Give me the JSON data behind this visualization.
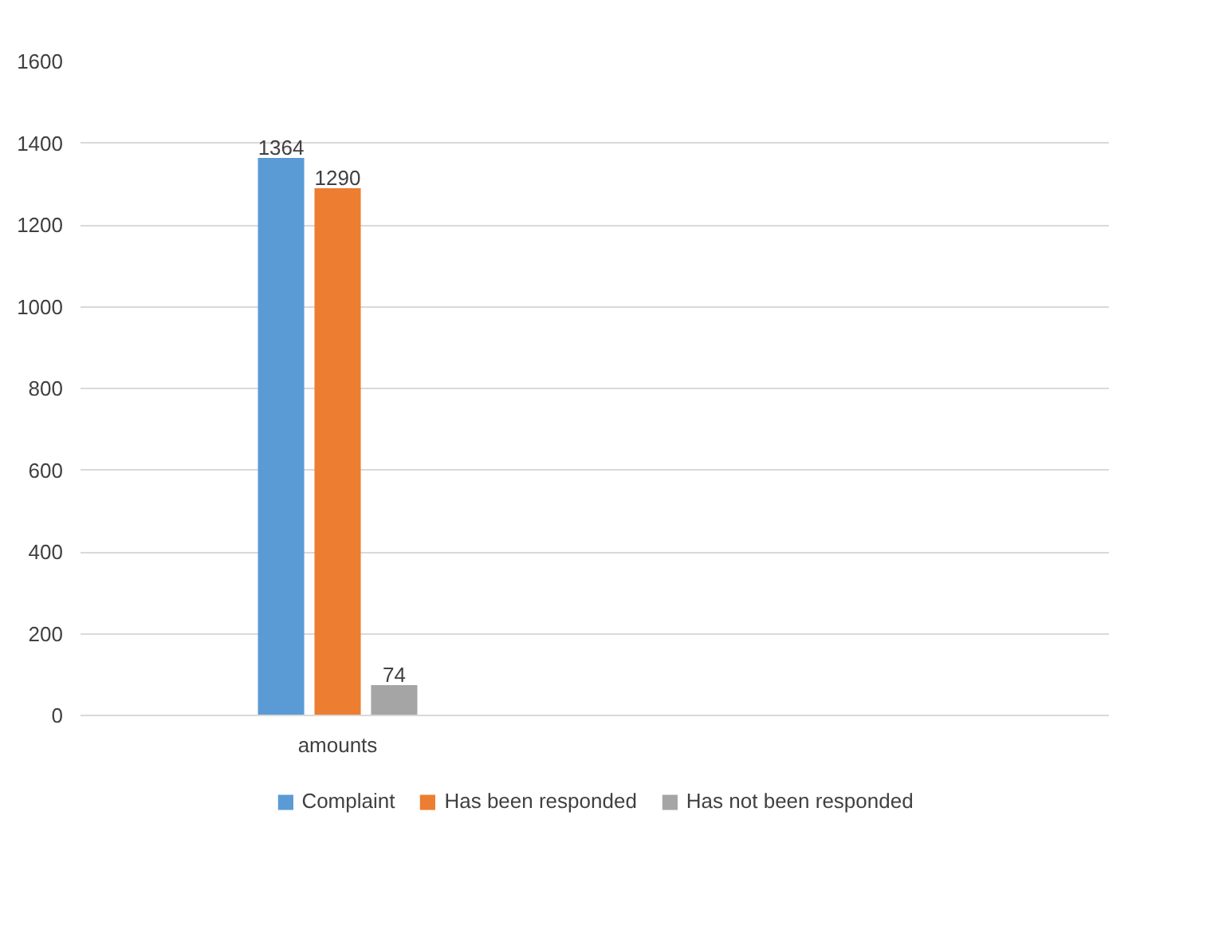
{
  "chart_data": {
    "type": "bar",
    "categories": [
      "amounts",
      null
    ],
    "series": [
      {
        "name": "Complaint",
        "color": "#5b9bd5",
        "values": [
          1364,
          null
        ]
      },
      {
        "name": "Has been responded",
        "color": "#ed7d31",
        "values": [
          1290,
          null
        ]
      },
      {
        "name": "Has not been responded",
        "color": "#a5a5a5",
        "values": [
          74,
          null
        ]
      }
    ],
    "ylim": [
      0,
      1600
    ],
    "yticks": [
      0,
      200,
      400,
      600,
      800,
      1000,
      1200,
      1400,
      1600
    ],
    "grid": "y",
    "legend": "bottom",
    "data_labels": true
  }
}
